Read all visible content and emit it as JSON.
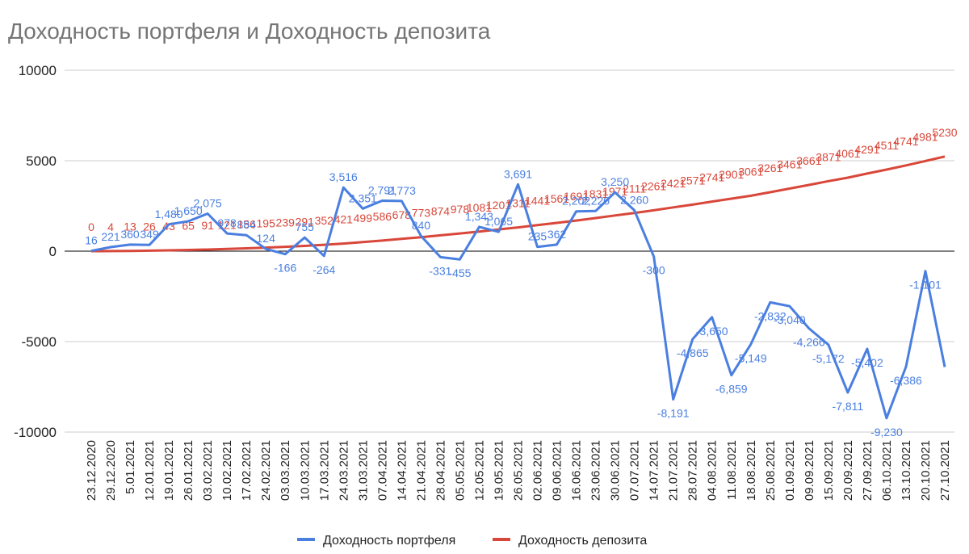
{
  "chart_data": {
    "type": "line",
    "title": "Доходность портфеля и Доходность депозита",
    "categories": [
      "23.12.2020",
      "29.12.2020",
      "5.01.2021",
      "12.01.2021",
      "19.01.2021",
      "26.01.2021",
      "03.02.2021",
      "10.02.2021",
      "17.02.2021",
      "24.02.2021",
      "03.03.2021",
      "10.03.2021",
      "17.03.2021",
      "24.03.2021",
      "31.03.2021",
      "07.04.2021",
      "14.04.2021",
      "21.04.2021",
      "28.04.2021",
      "05.05.2021",
      "12.05.2021",
      "19.05.2021",
      "26.05.2021",
      "02.06.2021",
      "09.06.2021",
      "16.06.2021",
      "23.06.2021",
      "30.06.2021",
      "07.07.2021",
      "14.07.2021",
      "21.07.2021",
      "28.07.2021",
      "04.08.2021",
      "11.08.2021",
      "18.08.2021",
      "25.08.2021",
      "01.09.2021",
      "09.09.2021",
      "15.09.2021",
      "20.09.2021",
      "27.09.2021",
      "06.10.2021",
      "13.10.2021",
      "20.10.2021",
      "27.10.2021"
    ],
    "series": [
      {
        "name": "Доходность портфеля",
        "color": "#4a7fe0",
        "values": [
          16,
          221,
          360,
          349,
          1480,
          1650,
          2075,
          978,
          884,
          124,
          -166,
          755,
          -264,
          3516,
          2351,
          2791,
          2773,
          840,
          -331,
          -455,
          1343,
          1065,
          3691,
          235,
          362,
          2202,
          2220,
          3250,
          2260,
          -300,
          -8191,
          -4865,
          -3650,
          -6859,
          -5149,
          -2832,
          -3040,
          -4266,
          -5172,
          -7811,
          -5402,
          -9230,
          -6386,
          -1101,
          -6400
        ],
        "value_labels": [
          "16",
          "221",
          "360",
          "349",
          "1,480",
          "1,650",
          "2,075",
          "978",
          "884",
          "124",
          "-166",
          "755",
          "-264",
          "3,516",
          "2,351",
          "2,791",
          "2,773",
          "840",
          "-331",
          "-455",
          "1,343",
          "1,065",
          "3,691",
          "235",
          "362",
          "2,202",
          "2,220",
          "3,250",
          "2,260",
          "-300",
          "-8,191",
          "-4,865",
          "-3,650",
          "-6,859",
          "-5,149",
          "-2,832",
          "-3,040",
          "-4,266",
          "-5,172",
          "-7,811",
          "-5,402",
          "-9,230",
          "-6,386",
          "-1,101",
          null
        ]
      },
      {
        "name": "Доходность депозита",
        "color": "#d9473a",
        "values": [
          0,
          4,
          13,
          26,
          43,
          65,
          91,
          121,
          156,
          195,
          239,
          291,
          352,
          421,
          499,
          586,
          678,
          773,
          874,
          978,
          1081,
          1201,
          1311,
          1441,
          1561,
          1691,
          1831,
          1971,
          2111,
          2261,
          2421,
          2571,
          2741,
          2901,
          3061,
          3261,
          3461,
          3661,
          3871,
          4061,
          4291,
          4511,
          4741,
          4981,
          5230
        ]
      }
    ],
    "ylim": [
      -10000,
      10000
    ],
    "yticks": [
      -10000,
      -5000,
      0,
      5000,
      10000
    ],
    "grid": true,
    "legend": "bottom"
  }
}
